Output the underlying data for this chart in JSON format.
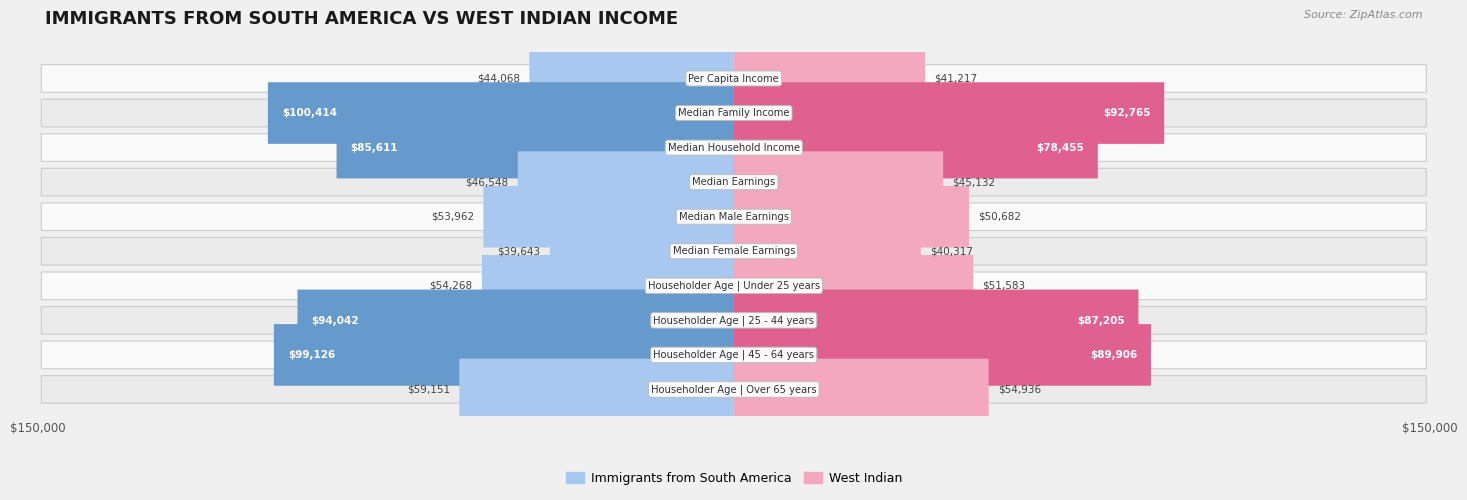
{
  "title": "IMMIGRANTS FROM SOUTH AMERICA VS WEST INDIAN INCOME",
  "source": "Source: ZipAtlas.com",
  "categories": [
    "Per Capita Income",
    "Median Family Income",
    "Median Household Income",
    "Median Earnings",
    "Median Male Earnings",
    "Median Female Earnings",
    "Householder Age | Under 25 years",
    "Householder Age | 25 - 44 years",
    "Householder Age | 45 - 64 years",
    "Householder Age | Over 65 years"
  ],
  "south_america_values": [
    44068,
    100414,
    85611,
    46548,
    53962,
    39643,
    54268,
    94042,
    99126,
    59151
  ],
  "west_indian_values": [
    41217,
    92765,
    78455,
    45132,
    50682,
    40317,
    51583,
    87205,
    89906,
    54936
  ],
  "south_america_labels": [
    "$44,068",
    "$100,414",
    "$85,611",
    "$46,548",
    "$53,962",
    "$39,643",
    "$54,268",
    "$94,042",
    "$99,126",
    "$59,151"
  ],
  "west_indian_labels": [
    "$41,217",
    "$92,765",
    "$78,455",
    "$45,132",
    "$50,682",
    "$40,317",
    "$51,583",
    "$87,205",
    "$89,906",
    "$54,936"
  ],
  "max_value": 150000,
  "south_america_color_light": "#a8c8f0",
  "south_america_color_dark": "#6699cc",
  "west_indian_color_light": "#f4a8c0",
  "west_indian_color_dark": "#e06090",
  "background_color": "#f0f0f0",
  "row_bg_even": "#fafafa",
  "row_bg_odd": "#ebebeb",
  "title_fontsize": 13,
  "label_fontsize": 8,
  "legend_fontsize": 9,
  "axis_label_fontsize": 8,
  "sa_large_threshold": 70000,
  "wi_large_threshold": 70000
}
